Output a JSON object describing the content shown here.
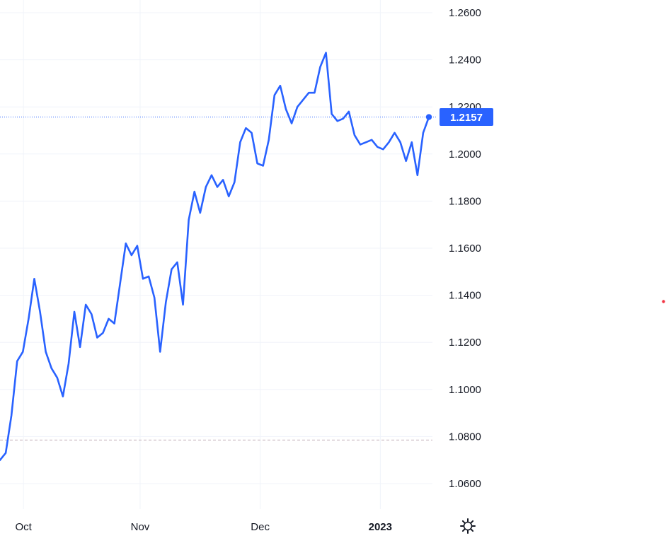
{
  "chart_data": {
    "type": "line",
    "title": "",
    "xlabel": "",
    "ylabel": "",
    "ylim": [
      1.049,
      1.268
    ],
    "y_ticks": [
      "1.2600",
      "1.2400",
      "1.2200",
      "1.2000",
      "1.1800",
      "1.1600",
      "1.1400",
      "1.1200",
      "1.1000",
      "1.0800",
      "1.0600"
    ],
    "x_ticks": [
      {
        "label": "Oct",
        "index": 4.1
      },
      {
        "label": "Nov",
        "index": 24.5
      },
      {
        "label": "Dec",
        "index": 45.5
      },
      {
        "label": "2023",
        "index": 66.5
      }
    ],
    "grid": true,
    "legend": "none",
    "line_color": "#2962ff",
    "baseline_value": 1.0785,
    "last_value_label": "1.2157",
    "series": [
      {
        "values": [
          1.07,
          1.073,
          1.089,
          1.112,
          1.116,
          1.13,
          1.147,
          1.133,
          1.116,
          1.109,
          1.105,
          1.097,
          1.111,
          1.133,
          1.118,
          1.136,
          1.132,
          1.122,
          1.124,
          1.13,
          1.128,
          1.145,
          1.162,
          1.157,
          1.161,
          1.147,
          1.148,
          1.139,
          1.116,
          1.137,
          1.151,
          1.154,
          1.136,
          1.172,
          1.184,
          1.175,
          1.186,
          1.191,
          1.186,
          1.189,
          1.182,
          1.188,
          1.205,
          1.211,
          1.209,
          1.196,
          1.195,
          1.206,
          1.225,
          1.229,
          1.219,
          1.213,
          1.22,
          1.223,
          1.226,
          1.226,
          1.237,
          1.243,
          1.217,
          1.214,
          1.215,
          1.218,
          1.208,
          1.204,
          1.205,
          1.206,
          1.203,
          1.202,
          1.205,
          1.209,
          1.205,
          1.197,
          1.205,
          1.191,
          1.209,
          1.2157
        ]
      }
    ]
  },
  "icons": {
    "settings": "gear-icon"
  }
}
